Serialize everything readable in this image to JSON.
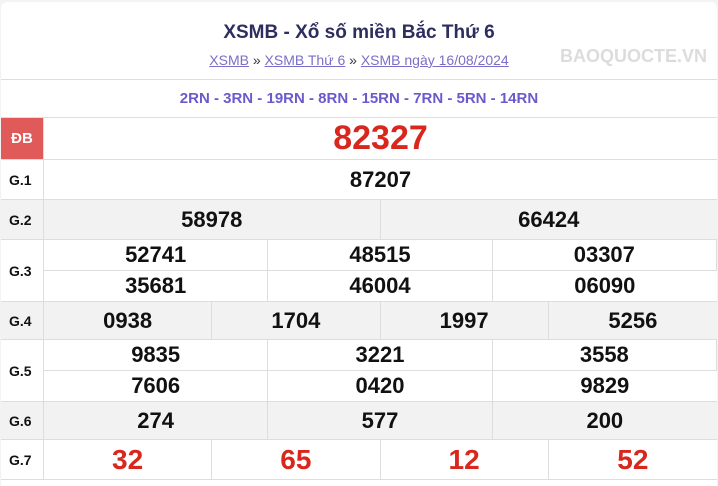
{
  "header": {
    "title": "XSMB - Xổ số miền Bắc Thứ 6",
    "breadcrumbs": [
      "XSMB",
      "XSMB Thứ 6",
      "XSMB ngày 16/08/2024"
    ],
    "separator": "»"
  },
  "codes": "2RN - 3RN - 19RN - 8RN - 15RN - 7RN - 5RN - 14RN",
  "prizes": [
    {
      "label": "ĐB",
      "numbers": [
        "82327"
      ]
    },
    {
      "label": "G.1",
      "numbers": [
        "87207"
      ]
    },
    {
      "label": "G.2",
      "numbers": [
        "58978",
        "66424"
      ]
    },
    {
      "label": "G.3",
      "numbers": [
        "52741",
        "48515",
        "03307",
        "35681",
        "46004",
        "06090"
      ]
    },
    {
      "label": "G.4",
      "numbers": [
        "0938",
        "1704",
        "1997",
        "5256"
      ]
    },
    {
      "label": "G.5",
      "numbers": [
        "9835",
        "3221",
        "3558",
        "7606",
        "0420",
        "9829"
      ]
    },
    {
      "label": "G.6",
      "numbers": [
        "274",
        "577",
        "200"
      ]
    },
    {
      "label": "G.7",
      "numbers": [
        "32",
        "65",
        "12",
        "52"
      ]
    }
  ],
  "watermark": "BAOQUOCTE.VN",
  "colors": {
    "special_label_bg": "#e05a5a",
    "red_numbers": "#d8281e",
    "codes": "#6a5acd",
    "title": "#2d2d5f"
  }
}
